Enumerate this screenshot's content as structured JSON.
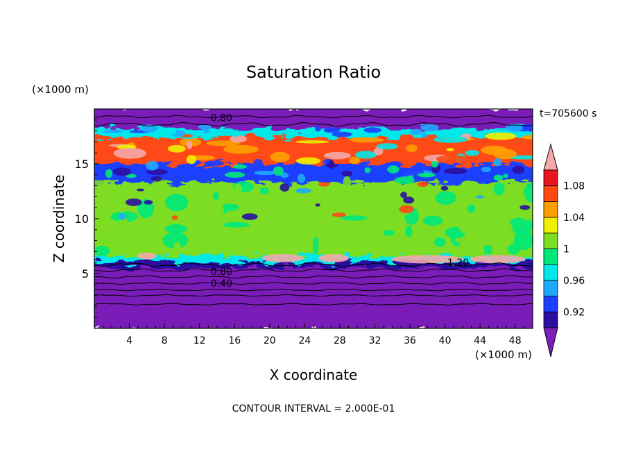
{
  "chart_data": {
    "type": "heatmap",
    "title": "Saturation Ratio",
    "xlabel": "X coordinate",
    "ylabel": "Z coordinate",
    "x_unit": "(×1000 m)",
    "y_unit": "(×1000 m)",
    "time_label": "t=705600 s",
    "footer": "CONTOUR INTERVAL = 2.000E-01",
    "xlim": [
      0,
      50
    ],
    "ylim": [
      0,
      20
    ],
    "x_ticks": [
      4,
      8,
      12,
      16,
      20,
      24,
      28,
      32,
      36,
      40,
      44,
      48
    ],
    "y_ticks": [
      5,
      10,
      15
    ],
    "colorbar": {
      "levels": [
        0.9,
        0.92,
        0.94,
        0.96,
        0.98,
        1.0,
        1.02,
        1.04,
        1.06,
        1.08,
        1.1
      ],
      "tick_labels": [
        {
          "value": 0.92,
          "label": "0.92"
        },
        {
          "value": 0.96,
          "label": "0.96"
        },
        {
          "value": 1.0,
          "label": "1"
        },
        {
          "value": 1.04,
          "label": "1.04"
        },
        {
          "value": 1.08,
          "label": "1.08"
        }
      ],
      "colors": [
        "#7a1fb8",
        "#2b0fa0",
        "#1f3fff",
        "#1fa8ff",
        "#00e8e8",
        "#00e87a",
        "#7cdd22",
        "#f0f000",
        "#ffa000",
        "#ff4a14",
        "#e8141e",
        "#f4a8a8"
      ],
      "extend": "both"
    },
    "bands": [
      {
        "z": [
          0.0,
          5.7
        ],
        "value": 0.5
      },
      {
        "z": [
          5.7,
          6.2
        ],
        "value": 0.91
      },
      {
        "z": [
          6.2,
          6.8
        ],
        "value": 0.97
      },
      {
        "z": [
          6.8,
          13.5
        ],
        "value": 1.01
      },
      {
        "z": [
          13.5,
          15.2
        ],
        "value": 0.93
      },
      {
        "z": [
          15.2,
          17.6
        ],
        "value": 1.07
      },
      {
        "z": [
          17.6,
          18.4
        ],
        "value": 0.97
      },
      {
        "z": [
          18.4,
          20.0
        ],
        "value": 0.6
      }
    ],
    "contour_labels": [
      {
        "text": "0.80",
        "x": 14.5,
        "z": 19.2
      },
      {
        "text": "0.80",
        "x": 14.5,
        "z": 5.2
      },
      {
        "text": "0.40",
        "x": 14.5,
        "z": 4.1
      },
      {
        "text": "1.20",
        "x": 41.5,
        "z": 6.0
      }
    ]
  }
}
